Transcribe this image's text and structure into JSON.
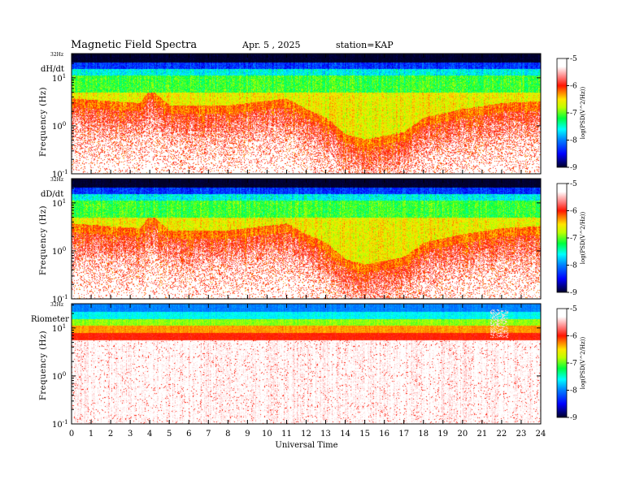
{
  "header": {
    "title": "Magnetic  Field  Spectra",
    "date": "Apr. 5  , 2025",
    "station": "station=KAP"
  },
  "chart_data": {
    "type": "heatmap",
    "title": "Magnetic  Field  Spectra",
    "xlabel": "Universal Time",
    "x_ticks": [
      "0",
      "1",
      "2",
      "3",
      "4",
      "5",
      "6",
      "7",
      "8",
      "9",
      "10",
      "11",
      "12",
      "13",
      "14",
      "15",
      "16",
      "17",
      "18",
      "19",
      "20",
      "21",
      "22",
      "23",
      "24"
    ],
    "xlim": [
      0,
      24
    ],
    "ylabel": "Frequency (Hz)",
    "y_scale": "log",
    "ylim_hz": [
      0.1,
      32
    ],
    "y_top_label": "32Hz",
    "y_ticks": [
      {
        "base": "10",
        "exp": "1",
        "value": 10
      },
      {
        "base": "10",
        "exp": "0",
        "value": 1
      },
      {
        "base": "10",
        "exp": "-1",
        "value": 0.1
      }
    ],
    "colorbar": {
      "label": "log(PSD(V^2/Hz))",
      "range": [
        -9,
        -5
      ],
      "ticks": [
        "-5",
        "-6",
        "-7",
        "-8",
        "-9"
      ],
      "colors": [
        "#ffffff",
        "#ff0000",
        "#ffff00",
        "#00ff00",
        "#00ffff",
        "#0000ff",
        "#000030"
      ]
    },
    "panels": [
      {
        "name": "dH/dt",
        "base_profile": [
          -6.4,
          -6.0,
          -5.9,
          -6.2,
          -6.6,
          -7.1,
          -7.5,
          -8.0,
          -8.6,
          -9.0
        ],
        "kind": "mag"
      },
      {
        "name": "dD/dt",
        "base_profile": [
          -6.4,
          -6.0,
          -5.9,
          -6.2,
          -6.6,
          -7.1,
          -7.5,
          -8.0,
          -8.6,
          -9.0
        ],
        "kind": "mag"
      },
      {
        "name": "Riometer",
        "base_profile": [
          -5.3,
          -5.3,
          -5.4,
          -5.6,
          -6.0,
          -6.4,
          -6.9,
          -7.3,
          -7.9,
          -8.3
        ],
        "kind": "rio"
      }
    ],
    "red_boundary_hz_by_hour": [
      {
        "ut": 0,
        "hz": 2.5
      },
      {
        "ut": 2,
        "hz": 2.2
      },
      {
        "ut": 3.5,
        "hz": 2.0
      },
      {
        "ut": 4,
        "hz": 4.0
      },
      {
        "ut": 5,
        "hz": 1.8
      },
      {
        "ut": 8,
        "hz": 1.8
      },
      {
        "ut": 11,
        "hz": 2.5
      },
      {
        "ut": 12,
        "hz": 1.5
      },
      {
        "ut": 13,
        "hz": 1.0
      },
      {
        "ut": 14,
        "hz": 0.45
      },
      {
        "ut": 15,
        "hz": 0.35
      },
      {
        "ut": 17,
        "hz": 0.5
      },
      {
        "ut": 18,
        "hz": 1.0
      },
      {
        "ut": 20,
        "hz": 1.5
      },
      {
        "ut": 22,
        "hz": 2.0
      },
      {
        "ut": 24,
        "hz": 2.2
      }
    ],
    "grid": false
  }
}
